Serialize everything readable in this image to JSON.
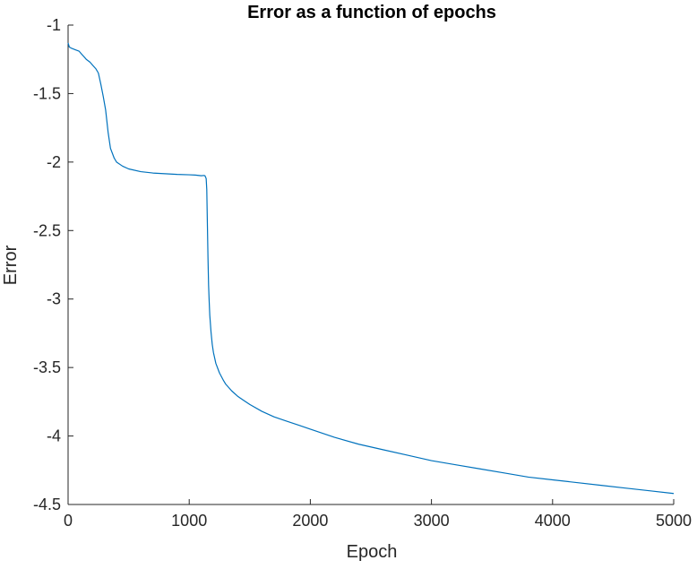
{
  "chart_data": {
    "type": "line",
    "title": "Error as a function of epochs",
    "xlabel": "Epoch",
    "ylabel": "Error",
    "xlim": [
      0,
      5000
    ],
    "ylim": [
      -4.5,
      -1
    ],
    "xticks": [
      0,
      1000,
      2000,
      3000,
      4000,
      5000
    ],
    "xtick_labels": [
      "0",
      "1000",
      "2000",
      "3000",
      "4000",
      "5000"
    ],
    "yticks": [
      -1,
      -1.5,
      -2,
      -2.5,
      -3,
      -3.5,
      -4,
      -4.5
    ],
    "ytick_labels": [
      "-1",
      "-1.5",
      "-2",
      "-2.5",
      "-3",
      "-3.5",
      "-4",
      "-4.5"
    ],
    "grid": false,
    "series": [
      {
        "color": "#0072BD",
        "x": [
          0,
          10,
          30,
          60,
          90,
          110,
          130,
          150,
          180,
          210,
          230,
          250,
          270,
          290,
          310,
          330,
          350,
          380,
          400,
          450,
          500,
          600,
          700,
          800,
          900,
          1000,
          1050,
          1100,
          1120,
          1130,
          1140,
          1145,
          1150,
          1155,
          1160,
          1165,
          1170,
          1180,
          1190,
          1200,
          1220,
          1250,
          1280,
          1300,
          1350,
          1400,
          1450,
          1500,
          1600,
          1700,
          1800,
          1900,
          2000,
          2200,
          2400,
          2600,
          2800,
          3000,
          3200,
          3400,
          3600,
          3800,
          4000,
          4200,
          4400,
          4600,
          4800,
          5000
        ],
        "y": [
          -1.13,
          -1.16,
          -1.17,
          -1.18,
          -1.19,
          -1.21,
          -1.23,
          -1.25,
          -1.27,
          -1.3,
          -1.32,
          -1.35,
          -1.43,
          -1.52,
          -1.62,
          -1.78,
          -1.9,
          -1.97,
          -2.0,
          -2.03,
          -2.05,
          -2.07,
          -2.08,
          -2.085,
          -2.09,
          -2.093,
          -2.095,
          -2.1,
          -2.098,
          -2.1,
          -2.12,
          -2.2,
          -2.45,
          -2.7,
          -2.9,
          -3.02,
          -3.12,
          -3.24,
          -3.33,
          -3.39,
          -3.47,
          -3.54,
          -3.59,
          -3.62,
          -3.67,
          -3.71,
          -3.74,
          -3.77,
          -3.82,
          -3.86,
          -3.89,
          -3.92,
          -3.95,
          -4.01,
          -4.06,
          -4.1,
          -4.14,
          -4.18,
          -4.21,
          -4.24,
          -4.27,
          -4.3,
          -4.32,
          -4.34,
          -4.36,
          -4.38,
          -4.4,
          -4.42
        ]
      }
    ]
  }
}
